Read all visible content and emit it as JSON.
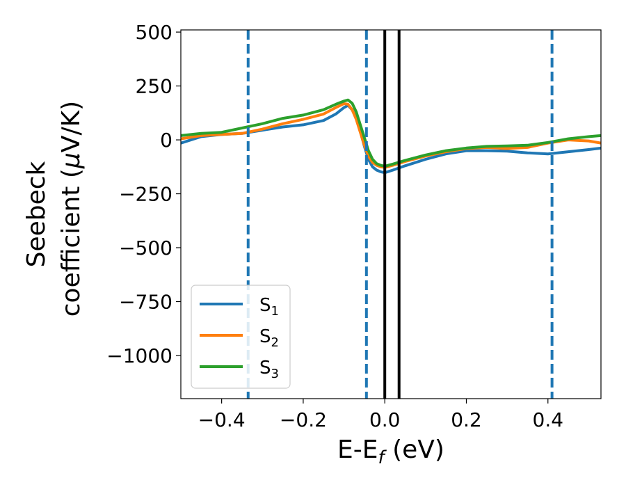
{
  "chart_data": {
    "type": "line",
    "xlabel": {
      "main": "E-E",
      "sub": "f",
      "tail": " (eV)"
    },
    "ylabel": {
      "line1": "Seebeck",
      "line2_pre": "coefficient  (",
      "mu": "μ",
      "line2_post": "V/K)"
    },
    "xlim": [
      -0.5,
      0.53
    ],
    "ylim": [
      -1200,
      510
    ],
    "xticks": [
      -0.4,
      -0.2,
      0.0,
      0.2,
      0.4
    ],
    "xtick_labels": [
      "−0.4",
      "−0.2",
      "0.0",
      "0.2",
      "0.4"
    ],
    "yticks": [
      500,
      250,
      0,
      -250,
      -500,
      -750,
      -1000
    ],
    "ytick_labels": [
      "500",
      "250",
      "0",
      "−250",
      "−500",
      "−750",
      "−1000"
    ],
    "grid": false,
    "legend_position": "lower-left",
    "dashed_vlines": {
      "x": [
        -0.335,
        -0.045,
        0.41
      ],
      "color": "#1f77b4"
    },
    "solid_vlines": {
      "x": [
        0.0,
        0.035
      ],
      "color": "#000000"
    },
    "series": [
      {
        "name": "S",
        "sub": "1",
        "color": "#1f77b4",
        "x": [
          -0.5,
          -0.45,
          -0.4,
          -0.35,
          -0.3,
          -0.25,
          -0.2,
          -0.15,
          -0.12,
          -0.1,
          -0.09,
          -0.08,
          -0.07,
          -0.06,
          -0.05,
          -0.04,
          -0.03,
          -0.02,
          -0.01,
          0.0,
          0.02,
          0.05,
          0.1,
          0.15,
          0.2,
          0.25,
          0.3,
          0.35,
          0.4,
          0.45,
          0.5,
          0.53
        ],
        "y": [
          -15,
          15,
          25,
          30,
          45,
          60,
          70,
          90,
          120,
          150,
          160,
          140,
          100,
          40,
          -30,
          -90,
          -125,
          -140,
          -148,
          -152,
          -140,
          -120,
          -90,
          -65,
          -50,
          -50,
          -52,
          -60,
          -65,
          -55,
          -45,
          -38
        ]
      },
      {
        "name": "S",
        "sub": "2",
        "color": "#ff7f0e",
        "x": [
          -0.5,
          -0.45,
          -0.4,
          -0.35,
          -0.3,
          -0.25,
          -0.2,
          -0.15,
          -0.12,
          -0.1,
          -0.09,
          -0.08,
          -0.07,
          -0.06,
          -0.05,
          -0.04,
          -0.03,
          -0.02,
          -0.01,
          0.0,
          0.02,
          0.05,
          0.1,
          0.15,
          0.2,
          0.25,
          0.3,
          0.35,
          0.4,
          0.45,
          0.5,
          0.53
        ],
        "y": [
          5,
          20,
          25,
          30,
          50,
          75,
          95,
          120,
          150,
          168,
          165,
          140,
          95,
          35,
          -25,
          -75,
          -105,
          -118,
          -125,
          -128,
          -118,
          -100,
          -75,
          -55,
          -40,
          -35,
          -40,
          -35,
          -15,
          0,
          -5,
          -15
        ]
      },
      {
        "name": "S",
        "sub": "3",
        "color": "#2ca02c",
        "x": [
          -0.5,
          -0.45,
          -0.4,
          -0.35,
          -0.3,
          -0.25,
          -0.2,
          -0.15,
          -0.12,
          -0.1,
          -0.09,
          -0.08,
          -0.07,
          -0.06,
          -0.05,
          -0.04,
          -0.03,
          -0.02,
          -0.01,
          0.0,
          0.02,
          0.05,
          0.1,
          0.15,
          0.2,
          0.25,
          0.3,
          0.35,
          0.4,
          0.45,
          0.5,
          0.53
        ],
        "y": [
          20,
          30,
          35,
          55,
          75,
          100,
          115,
          140,
          165,
          180,
          185,
          170,
          130,
          70,
          10,
          -50,
          -90,
          -110,
          -118,
          -122,
          -112,
          -95,
          -70,
          -50,
          -38,
          -30,
          -28,
          -25,
          -12,
          5,
          15,
          20
        ]
      }
    ]
  }
}
